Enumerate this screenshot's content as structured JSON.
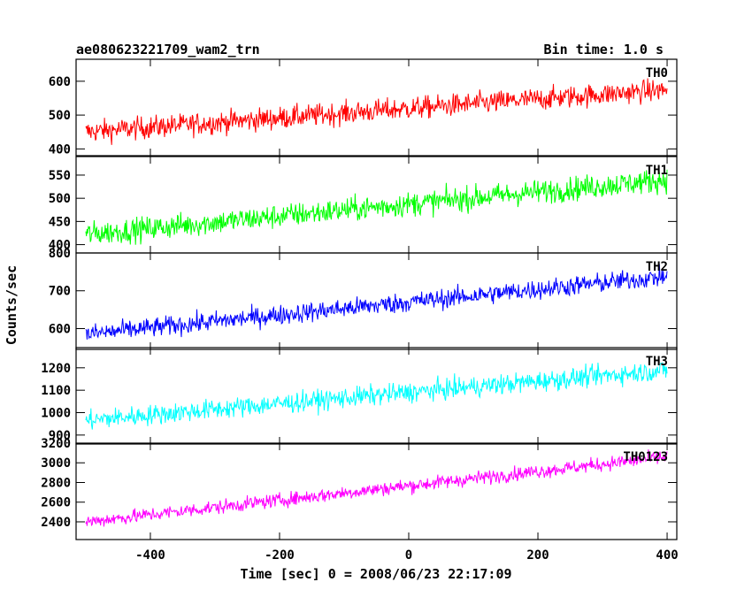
{
  "header": {
    "title": "ae080623221709_wam2_trn",
    "bin_time": "Bin time: 1.0 s"
  },
  "chart_data": {
    "type": "line",
    "ylabel": "Counts/sec",
    "xlabel": "Time [sec] 0 = 2008/06/23 22:17:09",
    "xlim": [
      -515,
      415
    ],
    "xticks": [
      -400,
      -200,
      0,
      200,
      400
    ],
    "x_range": [
      -500,
      400
    ],
    "bin_seconds": 1.0,
    "panels": [
      {
        "name": "TH0",
        "color": "#ff0000",
        "ylim": [
          380,
          665
        ],
        "yticks": [
          400,
          500,
          600
        ],
        "trend": [
          450,
          575
        ],
        "noise": 28
      },
      {
        "name": "TH1",
        "color": "#00ff00",
        "ylim": [
          382,
          590
        ],
        "yticks": [
          400,
          450,
          500,
          550
        ],
        "trend": [
          422,
          540
        ],
        "noise": 22
      },
      {
        "name": "TH2",
        "color": "#0000ff",
        "ylim": [
          545,
          800
        ],
        "yticks": [
          600,
          700,
          800
        ],
        "trend": [
          585,
          738
        ],
        "noise": 22
      },
      {
        "name": "TH3",
        "color": "#00ffff",
        "ylim": [
          860,
          1290
        ],
        "yticks": [
          900,
          1000,
          1100,
          1200
        ],
        "trend": [
          965,
          1190
        ],
        "noise": 38
      },
      {
        "name": "TH0123",
        "color": "#ff00ff",
        "ylim": [
          2220,
          3200
        ],
        "yticks": [
          2400,
          2600,
          2800,
          3000,
          3200
        ],
        "trend": [
          2400,
          3060
        ],
        "noise": 60
      }
    ]
  }
}
